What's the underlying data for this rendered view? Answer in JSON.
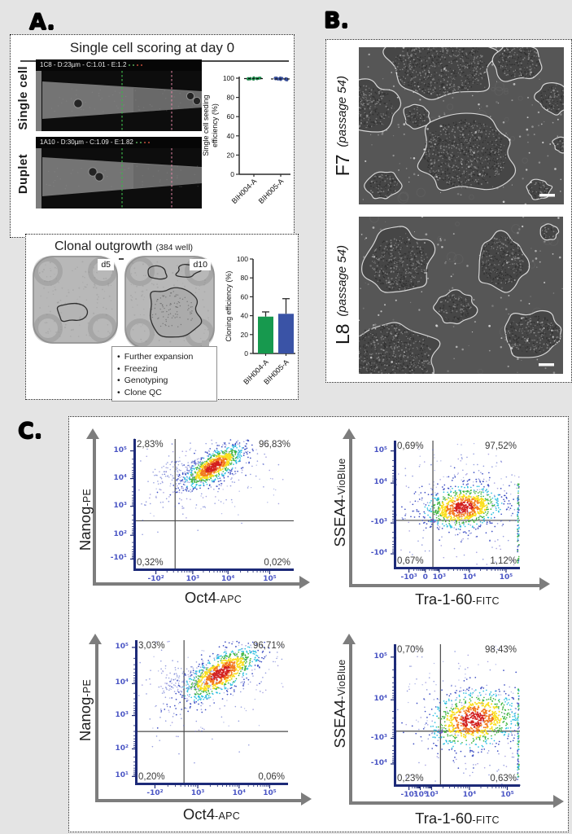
{
  "panel_a": {
    "label": "A.",
    "scoring": {
      "title": "Single cell scoring at day 0",
      "rows": [
        {
          "row_label": "Single cell",
          "header": "1C8 - D:23µm - C:1.01 - E:1.2"
        },
        {
          "row_label": "Duplet",
          "header": "1A10 - D:30µm - C:1.09 - E:1.82"
        }
      ]
    },
    "outgrowth": {
      "title": "Clonal outgrowth",
      "subtitle": "(384 well)",
      "wells": [
        {
          "label": "d5"
        },
        {
          "label": "d10"
        }
      ],
      "steps": [
        "Further expansion",
        "Freezing",
        "Genotyping",
        "Clone QC"
      ]
    }
  },
  "panel_b": {
    "label": "B.",
    "images": [
      {
        "name": "F7",
        "passage": "(passage 54)"
      },
      {
        "name": "L8",
        "passage": "(passage 54)"
      }
    ]
  },
  "panel_c": {
    "label": "C."
  },
  "colors": {
    "green": "#17994e",
    "blue": "#3a53a6",
    "flow_axis": "#1d2a78",
    "flow_tick_text": "#4a55c4",
    "gate_line": "#4a4a4a",
    "density_palette": [
      "#d3201f",
      "#f47a1f",
      "#fadf1e",
      "#3eb53e",
      "#2bbfe0",
      "#3c4dc3"
    ]
  },
  "chart_data": [
    {
      "id": "seeding",
      "type": "scatter",
      "ylabel_lines": [
        "Single cell seeding",
        "efficiency (%)"
      ],
      "ylim": [
        0,
        100
      ],
      "yticks": [
        0,
        20,
        40,
        60,
        80,
        100
      ],
      "categories": [
        "BIH004-A",
        "BIH005-A"
      ],
      "series": [
        {
          "name": "BIH004-A",
          "color": "#17994e",
          "values": [
            100,
            99.8,
            99.5,
            100,
            99.6,
            99.2,
            100,
            99.7,
            98.8,
            99.4,
            100,
            99.6
          ]
        },
        {
          "name": "BIH005-A",
          "color": "#3a53a6",
          "values": [
            99.8,
            99.0,
            98.2,
            99.5,
            100,
            97.8,
            99.2,
            100,
            98.6,
            99.4,
            98.9,
            99.7
          ]
        }
      ],
      "medians": [
        99.6,
        99.2
      ]
    },
    {
      "id": "cloning",
      "type": "bar",
      "ylabel": "Cloning efficiency (%)",
      "ylim": [
        0,
        100
      ],
      "yticks": [
        0,
        20,
        40,
        60,
        80,
        100
      ],
      "categories": [
        "BIH004-A",
        "BIH005-A"
      ],
      "values": [
        39,
        42
      ],
      "errors_plus": [
        5,
        16
      ],
      "bar_colors": [
        "#17994e",
        "#3a53a6"
      ]
    },
    {
      "id": "flow1",
      "type": "flow-scatter",
      "xlabel": {
        "main": "Oct4",
        "suffix": "-APC"
      },
      "ylabel": {
        "main": "Nanog",
        "suffix": "-PE"
      },
      "yticks": [
        {
          "label": "10⁵",
          "f": 0.09
        },
        {
          "label": "10⁴",
          "f": 0.3
        },
        {
          "label": "10³",
          "f": 0.51
        },
        {
          "label": "10²",
          "f": 0.73
        },
        {
          "label": "-10¹",
          "f": 0.91
        }
      ],
      "xticks": [
        {
          "label": "-10²",
          "f": 0.14
        },
        {
          "label": "10³",
          "f": 0.37
        },
        {
          "label": "10⁴",
          "f": 0.59
        },
        {
          "label": "10⁵",
          "f": 0.85
        }
      ],
      "gate": {
        "x": 0.26,
        "y": 0.62
      },
      "quadrants": {
        "tl": "2,83%",
        "tr": "96,83%",
        "bl": "0,32%",
        "br": "0,02%"
      },
      "cluster": {
        "cx": 0.5,
        "cy": 0.21,
        "rx": 0.11,
        "ry": 0.05,
        "angle": -32
      },
      "tail": true,
      "edge_strip": false
    },
    {
      "id": "flow2",
      "type": "flow-scatter",
      "xlabel": {
        "main": "Tra-1-60",
        "suffix": "-FITC"
      },
      "ylabel": {
        "main": "SSEA4",
        "suffix": "-VioBlue"
      },
      "yticks": [
        {
          "label": "10⁵",
          "f": 0.08
        },
        {
          "label": "10⁴",
          "f": 0.33
        },
        {
          "label": "-10³",
          "f": 0.64
        },
        {
          "label": "-10⁴",
          "f": 0.88
        }
      ],
      "xticks": [
        {
          "label": "-10³",
          "f": 0.12
        },
        {
          "label": "0",
          "f": 0.25
        },
        {
          "label": "10³",
          "f": 0.36
        },
        {
          "label": "10⁴",
          "f": 0.6
        },
        {
          "label": "10⁵",
          "f": 0.89
        }
      ],
      "gate": {
        "x": 0.31,
        "y": 0.62
      },
      "quadrants": {
        "tl": "0,69%",
        "tr": "97,52%",
        "bl": "0,67%",
        "br": "1,12%"
      },
      "cluster": {
        "cx": 0.55,
        "cy": 0.52,
        "rx": 0.16,
        "ry": 0.085,
        "angle": -8
      },
      "tail": false,
      "edge_strip": true
    },
    {
      "id": "flow3",
      "type": "flow-scatter",
      "xlabel": {
        "main": "Oct4",
        "suffix": "-APC"
      },
      "ylabel": {
        "main": "Nanog",
        "suffix": "-PE"
      },
      "yticks": [
        {
          "label": "10⁵",
          "f": 0.05
        },
        {
          "label": "10⁴",
          "f": 0.3
        },
        {
          "label": "10³",
          "f": 0.52
        },
        {
          "label": "10²",
          "f": 0.75
        },
        {
          "label": "10¹",
          "f": 0.94
        }
      ],
      "xticks": [
        {
          "label": "-10²",
          "f": 0.13
        },
        {
          "label": "10³",
          "f": 0.41
        },
        {
          "label": "10⁴",
          "f": 0.68
        },
        {
          "label": "10⁵",
          "f": 0.88
        }
      ],
      "gate": {
        "x": 0.32,
        "y": 0.63
      },
      "quadrants": {
        "tl": "3,03%",
        "tr": "96,71%",
        "bl": "0,20%",
        "br": "0,06%"
      },
      "cluster": {
        "cx": 0.56,
        "cy": 0.23,
        "rx": 0.145,
        "ry": 0.062,
        "angle": -32
      },
      "tail": true,
      "edge_strip": false
    },
    {
      "id": "flow4",
      "type": "flow-scatter",
      "xlabel": {
        "main": "Tra-1-60",
        "suffix": "-FITC"
      },
      "ylabel": {
        "main": "SSEA4",
        "suffix": "-VioBlue"
      },
      "yticks": [
        {
          "label": "10⁵",
          "f": 0.09
        },
        {
          "label": "10⁴",
          "f": 0.39
        },
        {
          "label": "-10³",
          "f": 0.66
        },
        {
          "label": "-10⁴",
          "f": 0.84
        }
      ],
      "xticks": [
        {
          "label": "-10³",
          "f": 0.12
        },
        {
          "label": "10⁰",
          "f": 0.21
        },
        {
          "label": "10³",
          "f": 0.3
        },
        {
          "label": "10⁴",
          "f": 0.6
        },
        {
          "label": "10⁵",
          "f": 0.9
        }
      ],
      "gate": {
        "x": 0.37,
        "y": 0.61
      },
      "quadrants": {
        "tl": "0,70%",
        "tr": "98,43%",
        "bl": "0,23%",
        "br": "0,63%"
      },
      "cluster": {
        "cx": 0.63,
        "cy": 0.53,
        "rx": 0.19,
        "ry": 0.105,
        "angle": -12
      },
      "tail": false,
      "edge_strip": true
    }
  ]
}
